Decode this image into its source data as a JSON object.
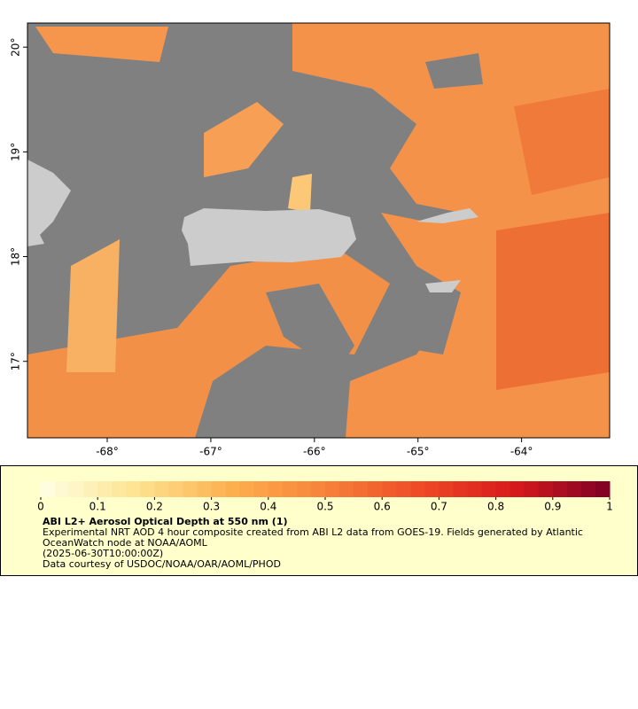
{
  "map": {
    "type": "map",
    "xlim": [
      -68.77,
      -63.15
    ],
    "ylim": [
      16.27,
      20.23
    ],
    "xticks": [
      {
        "value": -68,
        "label": "-68°"
      },
      {
        "value": -67,
        "label": "-67°"
      },
      {
        "value": -66,
        "label": "-66°"
      },
      {
        "value": -65,
        "label": "-65°"
      },
      {
        "value": -64,
        "label": "-64°"
      }
    ],
    "yticks": [
      {
        "value": 17,
        "label": "17°"
      },
      {
        "value": 18,
        "label": "18°"
      },
      {
        "value": 19,
        "label": "19°"
      },
      {
        "value": 20,
        "label": "20°"
      }
    ]
  },
  "colorbar": {
    "lim": [
      0,
      1
    ],
    "ticks": [
      0,
      0.1,
      0.2,
      0.3,
      0.4,
      0.5,
      0.6,
      0.7,
      0.8,
      0.9,
      1
    ],
    "colors": [
      "#ffffe5",
      "#fee391",
      "#fdb04f",
      "#f7823a",
      "#ef4a26",
      "#d7191c",
      "#7f0025"
    ]
  },
  "caption": {
    "title": "ABI L2+ Aerosol Optical Depth at 550 nm (1)",
    "lines": [
      "Experimental NRT AOD 4 hour composite created from ABI L2 data from GOES-19. Fields generated by Atlantic OceanWatch node at NOAA/AOML",
      "(2025-06-30T10:00:00Z)",
      "Data courtesy of USDOC/NOAA/OAR/AOML/PHOD"
    ]
  }
}
